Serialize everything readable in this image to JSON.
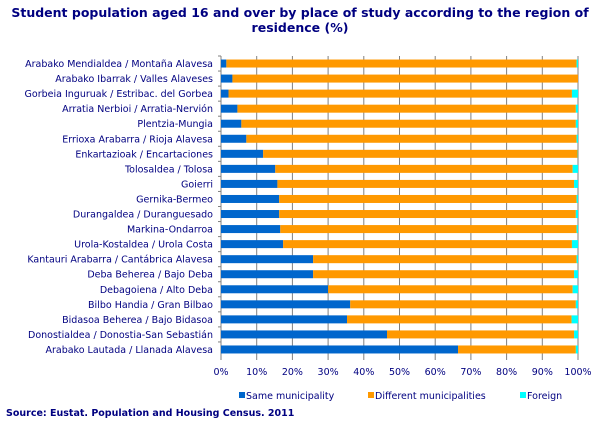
{
  "chart_data": {
    "type": "bar",
    "orientation": "horizontal",
    "stacked": "percent",
    "title_lines": [
      "Student population aged 16 and over by place of study according to the region of",
      "residence (%)"
    ],
    "source": "Source: Eustat. Population and Housing Census. 2011",
    "categories": [
      "Arabako Mendialdea  /  Montaña Alavesa",
      "Arabako Ibarrak  /  Valles Alaveses",
      "Gorbeia Inguruak  /  Estribac. del Gorbea",
      "Arratia Nerbioi  /  Arratia-Nervión",
      "Plentzia-Mungia",
      "Errioxa Arabarra  /  Rioja Alavesa",
      "Enkartazioak  /  Encartaciones",
      "Tolosaldea  /  Tolosa",
      "Goierri",
      "Gernika-Bermeo",
      "Durangaldea  /  Duranguesado",
      "Markina-Ondarroa",
      "Urola-Kostaldea  /  Urola Costa",
      "Kantauri Arabarra  /  Cantábrica Alavesa",
      "Deba Beherea  /  Bajo Deba",
      "Debagoiena  /  Alto Deba",
      "Bilbo Handia  /  Gran Bilbao",
      "Bidasoa Beherea  /  Bajo Bidasoa",
      "Donostialdea  /  Donostia-San Sebastián",
      "Arabako Lautada  /  Llanada Alavesa"
    ],
    "series": [
      {
        "name": "Same municipality",
        "color": "#0066cc",
        "values": [
          1.5,
          3.2,
          2.1,
          4.6,
          5.7,
          7.1,
          11.8,
          15.2,
          15.8,
          16.3,
          16.3,
          16.6,
          17.4,
          25.8,
          25.8,
          30.0,
          36.2,
          35.3,
          46.5,
          66.4
        ]
      },
      {
        "name": "Different municipalities",
        "color": "#ff9900",
        "values": [
          98.1,
          96.8,
          96.2,
          94.8,
          93.7,
          92.5,
          88.1,
          83.3,
          83.1,
          83.3,
          83.1,
          83.0,
          80.9,
          73.8,
          73.1,
          68.5,
          63.2,
          62.9,
          52.4,
          33.0
        ]
      },
      {
        "name": "Foreign",
        "color": "#00ffff",
        "values": [
          0.4,
          0.0,
          1.7,
          0.6,
          0.6,
          0.4,
          0.1,
          1.5,
          1.1,
          0.4,
          0.6,
          0.4,
          1.7,
          0.4,
          1.1,
          1.5,
          0.6,
          1.8,
          1.1,
          0.6
        ]
      }
    ],
    "xlim": [
      0,
      100
    ],
    "xticks": [
      "0%",
      "10%",
      "20%",
      "30%",
      "40%",
      "50%",
      "60%",
      "70%",
      "80%",
      "90%",
      "100%"
    ],
    "grid": true,
    "legend_position": "bottom"
  }
}
